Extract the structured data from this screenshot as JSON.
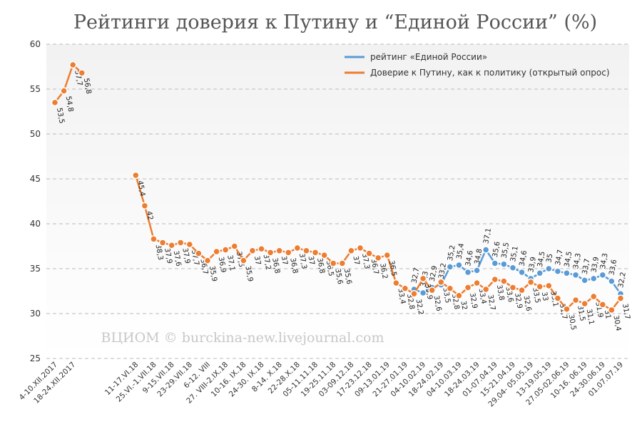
{
  "chart_data": {
    "type": "line",
    "title": "Рейтинги доверия к Путину и “Единой России” (%)",
    "annotation": "ВЦИОМ © burckina-new.livejournal.com",
    "categories": [
      "4-10.XII.2017",
      null,
      "18-24.XII.2017",
      null,
      null,
      null,
      null,
      null,
      null,
      "11-17.VI.18",
      null,
      "25.VI.-1.VII.18",
      null,
      "9-15.VII.18",
      null,
      "23-29.VII.18",
      null,
      "6-12. VIII",
      null,
      "27. VIII-2.IX.18",
      null,
      "10-16. IX.18",
      null,
      "24-30. IX.18",
      null,
      "8-14. X.18",
      null,
      "22-28.X.18",
      null,
      "05-11.11.18",
      null,
      "19-25.11.18",
      null,
      "03-09.12.18",
      null,
      "17-23.12.18",
      null,
      "09-13.01.19",
      null,
      "21-27.01.19",
      null,
      "04-10.02.19",
      null,
      "18-24.02.19",
      null,
      "04-10.03.19",
      null,
      "18-24.03.19",
      null,
      "01-07.04.19",
      null,
      "15-21.04.19",
      null,
      "29.04- 05.05.19",
      null,
      "13-19.05.19",
      null,
      "27.05-02.06.19",
      null,
      "10-16. 06.19",
      null,
      "24-30.06.19",
      null,
      "01.07.07.19"
    ],
    "ylim": [
      25,
      60
    ],
    "yticks": [
      25,
      30,
      35,
      40,
      45,
      50,
      55,
      60
    ],
    "grid": true,
    "legend": "top-right",
    "series": [
      {
        "name": "рейтинг «Единой России»",
        "color": "#5b9bd5",
        "values": [
          null,
          null,
          null,
          null,
          null,
          null,
          null,
          null,
          null,
          null,
          null,
          null,
          null,
          null,
          null,
          null,
          null,
          null,
          null,
          null,
          null,
          null,
          null,
          null,
          null,
          null,
          null,
          null,
          null,
          null,
          null,
          null,
          null,
          null,
          null,
          null,
          null,
          null,
          null,
          null,
          32.7,
          32.3,
          32.9,
          33.2,
          35.2,
          35.4,
          34.6,
          34.8,
          37.1,
          35.6,
          35.5,
          35.1,
          34.6,
          33.9,
          34.5,
          35,
          34.7,
          34.5,
          34.3,
          33.7,
          33.9,
          34.3,
          33.6,
          32.2
        ],
        "value_labels": [
          null,
          null,
          null,
          null,
          null,
          null,
          null,
          null,
          null,
          null,
          null,
          null,
          null,
          null,
          null,
          null,
          null,
          null,
          null,
          null,
          null,
          null,
          null,
          null,
          null,
          null,
          null,
          null,
          null,
          null,
          null,
          null,
          null,
          null,
          null,
          null,
          null,
          null,
          null,
          null,
          "32,7",
          "32,3",
          "32,9",
          "33,2",
          "35,2",
          "35,4",
          "34,6",
          "34,8",
          "37,1",
          "35,6",
          "35,5",
          "35,1",
          "34,6",
          "33,9",
          "34,5",
          "35",
          "34,7",
          "34,5",
          "34,3",
          "33,7",
          "33,9",
          "34,3",
          "33,6",
          "32,2"
        ]
      },
      {
        "name": "Доверие к Путину, как к политику (открытый опрос)",
        "color": "#ed7d31",
        "values": [
          53.5,
          54.8,
          57.7,
          56.8,
          null,
          null,
          null,
          null,
          null,
          45.4,
          42,
          38.3,
          37.9,
          37.6,
          37.9,
          37.7,
          36.7,
          35.9,
          36.9,
          37.1,
          37.5,
          35.9,
          37,
          37.2,
          36.8,
          37,
          36.8,
          37.3,
          37,
          36.8,
          36.5,
          35.6,
          35.6,
          37,
          37.3,
          36.7,
          36.2,
          36.5,
          33.4,
          32.8,
          32.2,
          33.9,
          32.6,
          33.5,
          32.8,
          32,
          32.9,
          33.4,
          32.7,
          33.8,
          33.6,
          32.9,
          32.6,
          33.5,
          33,
          33.1,
          31.7,
          30.5,
          31.5,
          31.1,
          31.9,
          31,
          30.4,
          31.7
        ],
        "value_labels": [
          "53,5",
          "54,8",
          "57,7",
          "56,8",
          null,
          null,
          null,
          null,
          null,
          "45,4",
          "42",
          "38,3",
          "37,9",
          "37,6",
          "37,9",
          "37,7",
          "36,7",
          "35,9",
          "36,9",
          "37,1",
          "37,5",
          "35,9",
          "37",
          "37,2",
          "36,8",
          "37",
          "36,8",
          "37,3",
          "37",
          "36,8",
          "36,5",
          "35,6",
          "35,6",
          "37",
          "37,3",
          "36,7",
          "36,2",
          "36,5",
          "33,4",
          "32,8",
          "32,2",
          "33,9",
          "32,6",
          "33,5",
          "32,8",
          "32",
          "32,9",
          "33,4",
          "32,7",
          "33,8",
          "33,6",
          "32,9",
          "32,6",
          "33,5",
          "33",
          "33,1",
          "31,7",
          "30,5",
          "31,5",
          "31,1",
          "31,9",
          "31",
          "30,4",
          "31,7"
        ]
      }
    ]
  }
}
